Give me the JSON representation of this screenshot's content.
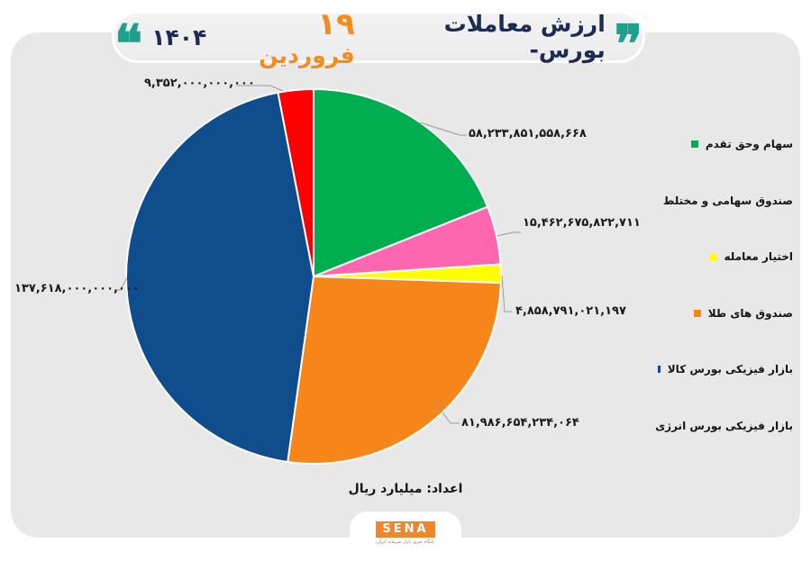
{
  "header": {
    "title_main": "ارزش معاملات بورس-",
    "title_day": "۱۹",
    "title_month": "فروردین",
    "title_year": "۱۴۰۴",
    "open_quote": "❞",
    "close_quote": "❝"
  },
  "chart_data": {
    "type": "pie",
    "title": "ارزش معاملات بورس- ۱۹ فروردین ۱۴۰۴",
    "unit": "اعداد: میلیارد ریال",
    "start_angle_deg": 0,
    "direction": "clockwise",
    "legend_position": "right",
    "categories": [
      "سهام وحق تقدم",
      "صندوق سهامی و مختلط",
      "اختیار معامله",
      "صندوق های طلا",
      "بازار فیزیکی بورس کالا",
      "بازار فیزیکی بورس انرژی"
    ],
    "values": [
      58233851558668,
      15462675822711,
      4858791021197,
      81986654234064,
      137618000000000,
      9352000000000
    ],
    "value_labels": [
      "۵۸,۲۳۳,۸۵۱,۵۵۸,۶۶۸",
      "۱۵,۴۶۲,۶۷۵,۸۲۲,۷۱۱",
      "۴,۸۵۸,۷۹۱,۰۲۱,۱۹۷",
      "۸۱,۹۸۶,۶۵۴,۲۳۴,۰۶۴",
      "۱۳۷,۶۱۸,۰۰۰,۰۰۰,۰۰۰",
      "۹,۳۵۲,۰۰۰,۰۰۰,۰۰۰"
    ],
    "colors": [
      "#00ad4f",
      "#ff66b0",
      "#ffff00",
      "#f7861a",
      "#0f4d8c",
      "#ff0000"
    ]
  },
  "legend": {
    "items": [
      {
        "label": "سهام وحق تقدم",
        "color": "#00ad4f"
      },
      {
        "label": "صندوق سهامی و مختلط",
        "color": "#ff66b0"
      },
      {
        "label": "اختیار معامله",
        "color": "#ffff00"
      },
      {
        "label": "صندوق های طلا",
        "color": "#f7861a"
      },
      {
        "label": "بازار فیزیکی بورس کالا",
        "color": "#0f4d8c"
      },
      {
        "label": "بازار فیزیکی بورس انرژی",
        "color": "#ff0000"
      }
    ]
  },
  "footer": {
    "unit_note": "اعداد: میلیارد ریال",
    "logo_text": "SENA",
    "logo_subtitle": "پایگاه خبری بازار سرمایه ایران"
  }
}
